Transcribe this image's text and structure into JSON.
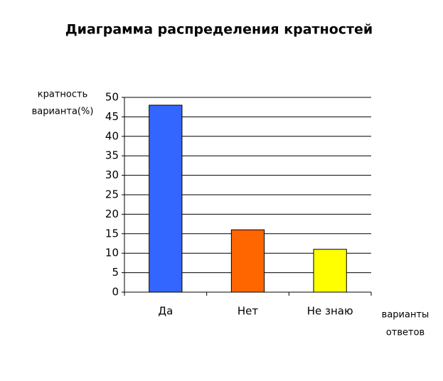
{
  "chart_data": {
    "type": "bar",
    "title": "Диаграмма распределения кратностей",
    "y_label": [
      "кратность",
      "варианта(%)"
    ],
    "x_label": [
      "варианты",
      "ответов"
    ],
    "categories": [
      "Да",
      "Нет",
      "Не знаю"
    ],
    "values": [
      48,
      16,
      11
    ],
    "colors": [
      "#3366ff",
      "#ff6600",
      "#ffff00"
    ],
    "ylim": [
      0,
      50
    ],
    "yticks": [
      0,
      5,
      10,
      15,
      20,
      25,
      30,
      35,
      40,
      45,
      50
    ],
    "grid": true
  }
}
